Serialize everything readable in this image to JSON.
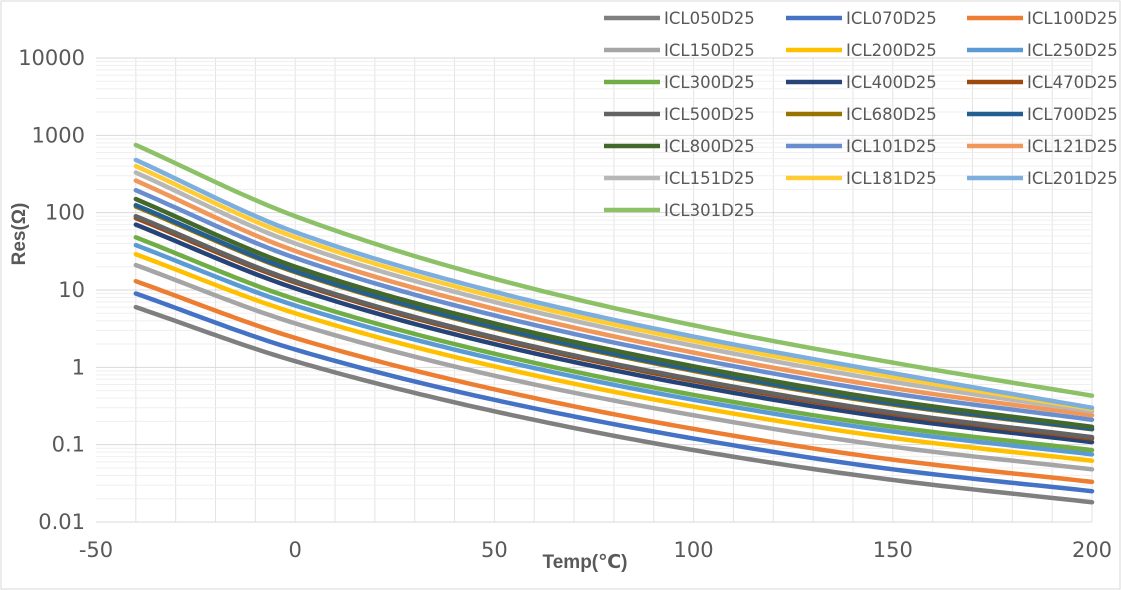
{
  "chart_data": {
    "type": "line",
    "x_label": "Temp(℃)",
    "y_label": "Res(Ω)",
    "x_range": [
      -50,
      200
    ],
    "x_ticks": [
      "-50",
      "0",
      "50",
      "100",
      "150",
      "200"
    ],
    "y_scale": "log",
    "y_range": [
      0.01,
      10000
    ],
    "y_ticks": [
      "0.01",
      "0.1",
      "1",
      "10",
      "100",
      "1000",
      "10000"
    ],
    "grid": "horizontal major and minor gridlines, vertical gridlines every 10",
    "legend_position": "top-right",
    "x": [
      -40,
      0,
      50,
      100,
      150,
      200
    ],
    "series": [
      {
        "name": "ICL050D25",
        "color": "#7f7f7f",
        "values": [
          6.0,
          1.2,
          0.27,
          0.085,
          0.035,
          0.018
        ]
      },
      {
        "name": "ICL070D25",
        "color": "#4472c4",
        "values": [
          9.0,
          1.7,
          0.38,
          0.12,
          0.048,
          0.025
        ]
      },
      {
        "name": "ICL100D25",
        "color": "#ed7d31",
        "values": [
          13.0,
          2.4,
          0.52,
          0.16,
          0.064,
          0.033
        ]
      },
      {
        "name": "ICL150D25",
        "color": "#a5a5a5",
        "values": [
          21.0,
          3.7,
          0.78,
          0.24,
          0.094,
          0.048
        ]
      },
      {
        "name": "ICL200D25",
        "color": "#ffc000",
        "values": [
          29.0,
          5.0,
          1.03,
          0.31,
          0.122,
          0.062
        ]
      },
      {
        "name": "ICL250D25",
        "color": "#5b9bd5",
        "values": [
          38.0,
          6.3,
          1.28,
          0.38,
          0.148,
          0.075
        ]
      },
      {
        "name": "ICL300D25",
        "color": "#70ad47",
        "values": [
          48.0,
          7.6,
          1.5,
          0.44,
          0.17,
          0.085
        ]
      },
      {
        "name": "ICL400D25",
        "color": "#264478",
        "values": [
          70.0,
          10.5,
          2.0,
          0.58,
          0.22,
          0.108
        ]
      },
      {
        "name": "ICL470D25",
        "color": "#9e480e",
        "values": [
          85.0,
          12.5,
          2.35,
          0.67,
          0.25,
          0.12
        ]
      },
      {
        "name": "ICL500D25",
        "color": "#636363",
        "values": [
          90.0,
          13.0,
          2.45,
          0.7,
          0.26,
          0.125
        ]
      },
      {
        "name": "ICL680D25",
        "color": "#997300",
        "values": [
          120.0,
          17.0,
          3.2,
          0.9,
          0.33,
          0.158
        ]
      },
      {
        "name": "ICL700D25",
        "color": "#255e91",
        "values": [
          125.0,
          17.5,
          3.3,
          0.93,
          0.34,
          0.16
        ]
      },
      {
        "name": "ICL800D25",
        "color": "#43682b",
        "values": [
          150.0,
          20.0,
          3.7,
          1.03,
          0.37,
          0.17
        ]
      },
      {
        "name": "ICL101D25",
        "color": "#698ed0",
        "values": [
          195.0,
          26.0,
          4.7,
          1.3,
          0.46,
          0.21
        ]
      },
      {
        "name": "ICL121D25",
        "color": "#f1975a",
        "values": [
          260.0,
          32.0,
          5.7,
          1.55,
          0.54,
          0.24
        ]
      },
      {
        "name": "ICL151D25",
        "color": "#b7b7b7",
        "values": [
          330.0,
          40.0,
          7.0,
          1.9,
          0.65,
          0.27
        ]
      },
      {
        "name": "ICL181D25",
        "color": "#ffcd33",
        "values": [
          400.0,
          48.0,
          8.2,
          2.2,
          0.75,
          0.29
        ]
      },
      {
        "name": "ICL201D25",
        "color": "#7cafdd",
        "values": [
          480.0,
          56.0,
          9.5,
          2.5,
          0.84,
          0.3
        ]
      },
      {
        "name": "ICL301D25",
        "color": "#8cc168",
        "values": [
          750.0,
          90.0,
          14.0,
          3.5,
          1.15,
          0.43
        ]
      }
    ]
  }
}
